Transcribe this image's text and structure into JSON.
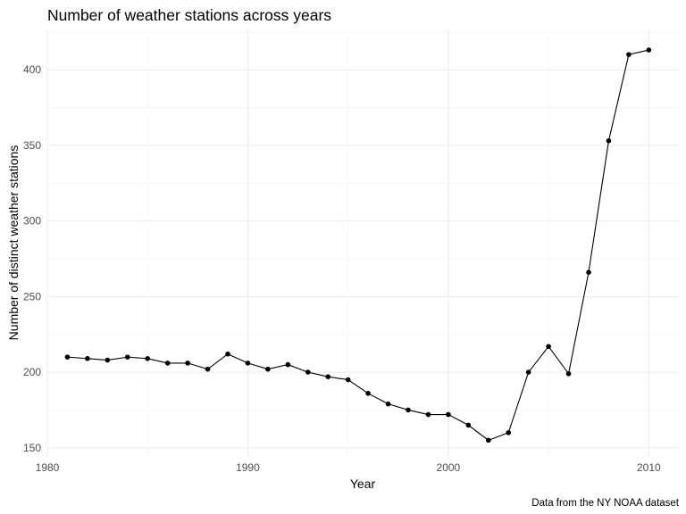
{
  "chart_data": {
    "type": "line",
    "title": "Number of weather stations across years",
    "xlabel": "Year",
    "ylabel": "Number of distinct weather stations",
    "caption": "Data from the NY NOAA dataset",
    "xlim": [
      1980,
      2011.5
    ],
    "ylim": [
      144,
      426
    ],
    "x_ticks": [
      1980,
      1990,
      2000,
      2010
    ],
    "y_ticks": [
      150,
      200,
      250,
      300,
      350,
      400
    ],
    "grid": true,
    "legend": "none",
    "colors": {
      "line": "#000000",
      "points": "#000000",
      "grid": "#ebebeb"
    },
    "series": [
      {
        "x": [
          1981,
          1982,
          1983,
          1984,
          1985,
          1986,
          1987,
          1988,
          1989,
          1990,
          1991,
          1992,
          1993,
          1994,
          1995,
          1996,
          1997,
          1998,
          1999,
          2000,
          2001,
          2002,
          2003,
          2004,
          2005,
          2006,
          2007,
          2008,
          2009,
          2010
        ],
        "values": [
          210,
          209,
          208,
          210,
          209,
          206,
          206,
          202,
          212,
          206,
          202,
          205,
          200,
          197,
          195,
          186,
          179,
          175,
          172,
          172,
          165,
          155,
          160,
          200,
          217,
          199,
          266,
          353,
          410,
          413
        ]
      }
    ]
  }
}
